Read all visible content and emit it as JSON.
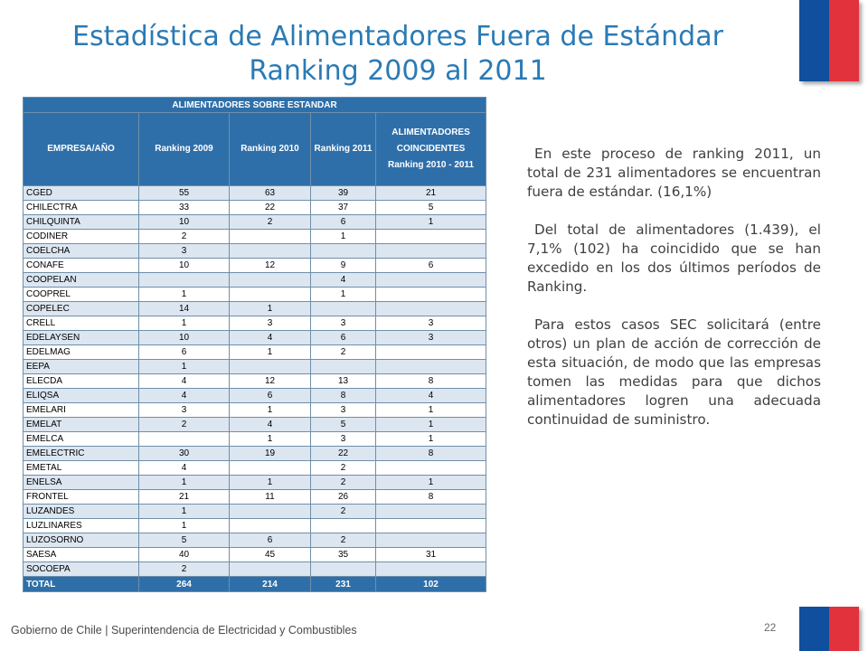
{
  "slide": {
    "title_line1": "Estadística de Alimentadores Fuera de Estándar",
    "title_line2": "Ranking 2009 al 2011",
    "colors": {
      "title": "#2a7ab5",
      "flag_blue": "#0f4f9d",
      "flag_red": "#e2323c",
      "table_header": "#2f6fa9",
      "row_band": "#dce6f1"
    }
  },
  "table": {
    "band_title": "ALIMENTADORES SOBRE ESTANDAR",
    "headers": [
      "EMPRESA/AÑO",
      "Ranking 2009",
      "Ranking 2010",
      "Ranking 2011",
      "ALIMENTADORES COINCIDENTES Ranking 2010 - 2011"
    ],
    "rows": [
      [
        "CGED",
        "55",
        "63",
        "39",
        "21"
      ],
      [
        "CHILECTRA",
        "33",
        "22",
        "37",
        "5"
      ],
      [
        "CHILQUINTA",
        "10",
        "2",
        "6",
        "1"
      ],
      [
        "CODINER",
        "2",
        "",
        "1",
        ""
      ],
      [
        "COELCHA",
        "3",
        "",
        "",
        ""
      ],
      [
        "CONAFE",
        "10",
        "12",
        "9",
        "6"
      ],
      [
        "COOPELAN",
        "",
        "",
        "4",
        ""
      ],
      [
        "COOPREL",
        "1",
        "",
        "1",
        ""
      ],
      [
        "COPELEC",
        "14",
        "1",
        "",
        ""
      ],
      [
        "CRELL",
        "1",
        "3",
        "3",
        "3"
      ],
      [
        "EDELAYSEN",
        "10",
        "4",
        "6",
        "3"
      ],
      [
        "EDELMAG",
        "6",
        "1",
        "2",
        ""
      ],
      [
        "EEPA",
        "1",
        "",
        "",
        ""
      ],
      [
        "ELECDA",
        "4",
        "12",
        "13",
        "8"
      ],
      [
        "ELIQSA",
        "4",
        "6",
        "8",
        "4"
      ],
      [
        "EMELARI",
        "3",
        "1",
        "3",
        "1"
      ],
      [
        "EMELAT",
        "2",
        "4",
        "5",
        "1"
      ],
      [
        "EMELCA",
        "",
        "1",
        "3",
        "1"
      ],
      [
        "EMELECTRIC",
        "30",
        "19",
        "22",
        "8"
      ],
      [
        "EMETAL",
        "4",
        "",
        "2",
        ""
      ],
      [
        "ENELSA",
        "1",
        "1",
        "2",
        "1"
      ],
      [
        "FRONTEL",
        "21",
        "11",
        "26",
        "8"
      ],
      [
        "LUZANDES",
        "1",
        "",
        "2",
        ""
      ],
      [
        "LUZLINARES",
        "1",
        "",
        "",
        ""
      ],
      [
        "LUZOSORNO",
        "5",
        "6",
        "2",
        ""
      ],
      [
        "SAESA",
        "40",
        "45",
        "35",
        "31"
      ],
      [
        "SOCOEPA",
        "2",
        "",
        "",
        ""
      ]
    ],
    "total": [
      "TOTAL",
      "264",
      "214",
      "231",
      "102"
    ]
  },
  "body": {
    "paragraphs": [
      "En este proceso de ranking 2011, un total de 231 alimentadores se encuentran fuera de estándar. (16,1%)",
      "Del total de alimentadores (1.439), el 7,1% (102) ha coincidido que se han excedido en los dos últimos períodos de Ranking.",
      "Para estos casos SEC solicitará (entre otros) un  plan de acción de corrección de esta situación, de modo que las empresas tomen las medidas para que dichos alimentadores logren una adecuada continuidad de suministro."
    ]
  },
  "footer": {
    "text": "Gobierno de Chile | Superintendencia de Electricidad y Combustibles",
    "page_number": "22"
  }
}
